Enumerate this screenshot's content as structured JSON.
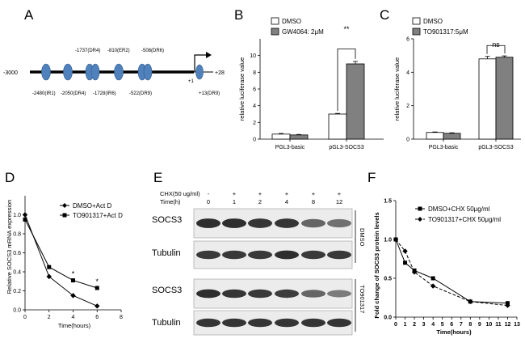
{
  "panels": {
    "A": {
      "label": "A",
      "start_label": "-3000",
      "end_label": "+28",
      "tss_label": "+1",
      "sites_top": [
        "-1737(DR4)",
        "-810(ER2)",
        "-508(DR6)"
      ],
      "sites_bottom": [
        "-2480(IR1)",
        "-2050(DR4)",
        "-1728(IR6)",
        "-522(DR9)",
        "+13(DR9)"
      ]
    },
    "B": {
      "label": "B"
    },
    "C": {
      "label": "C"
    },
    "D": {
      "label": "D"
    },
    "E": {
      "label": "E",
      "chx_label": "CHX(50 ug/ml)",
      "time_label": "Time(h)",
      "chx_marks": [
        "-",
        "+",
        "+",
        "+",
        "+",
        "+"
      ],
      "times": [
        "0",
        "1",
        "2",
        "4",
        "8",
        "12"
      ],
      "rows": [
        "SOCS3",
        "Tubulin",
        "SOCS3",
        "Tubulin"
      ],
      "groups": [
        "DMSO",
        "TO901317"
      ],
      "band_intensity": {
        "socs3_dmso": [
          0.95,
          0.95,
          0.92,
          0.92,
          0.7,
          0.65
        ],
        "tubulin_dmso": [
          0.9,
          0.9,
          0.9,
          0.95,
          0.9,
          0.9
        ],
        "socs3_to": [
          0.95,
          0.92,
          0.9,
          0.88,
          0.7,
          0.6
        ],
        "tubulin_to": [
          0.92,
          0.92,
          0.92,
          0.92,
          0.92,
          0.92
        ]
      }
    },
    "F": {
      "label": "F"
    }
  },
  "chart_data": [
    {
      "panel": "B",
      "type": "bar",
      "categories": [
        "PGL3-basic",
        "pGL3-SOCS3"
      ],
      "series": [
        {
          "name": "DMSO",
          "values": [
            0.6,
            3.0
          ],
          "errors": [
            0.08,
            0.08
          ],
          "color": "#ffffff"
        },
        {
          "name": "GW4064: 2μM",
          "values": [
            0.5,
            9.0
          ],
          "errors": [
            0.06,
            0.3
          ],
          "color": "#808080"
        }
      ],
      "ylabel": "relative luciferase value",
      "ylim": [
        0,
        12
      ],
      "yticks": [
        0,
        2,
        4,
        6,
        8,
        10
      ],
      "annotation": "**",
      "legend": "top-left"
    },
    {
      "panel": "C",
      "type": "bar",
      "categories": [
        "PGL3-basic",
        "pGL3-SOCS3"
      ],
      "series": [
        {
          "name": "DMSO",
          "values": [
            0.4,
            4.8
          ],
          "errors": [
            0.03,
            0.15
          ],
          "color": "#ffffff"
        },
        {
          "name": "TO901317:5μM",
          "values": [
            0.35,
            4.9
          ],
          "errors": [
            0.03,
            0.08
          ],
          "color": "#808080"
        }
      ],
      "ylabel": "relative luciferase value",
      "ylim": [
        0,
        6
      ],
      "yticks": [
        0,
        2,
        4,
        6
      ],
      "annotation": "ns",
      "legend": "top-left"
    },
    {
      "panel": "D",
      "type": "line",
      "x": [
        0,
        2,
        4,
        6
      ],
      "series": [
        {
          "name": "DMSO+Act D",
          "marker": "diamond",
          "values": [
            1.0,
            0.35,
            0.15,
            0.04
          ]
        },
        {
          "name": "TO901317+Act D",
          "marker": "square",
          "values": [
            0.95,
            0.45,
            0.31,
            0.23
          ]
        }
      ],
      "xlabel": "Time(hours)",
      "ylabel": "Relative SOCS3 mRNA expression",
      "xlim": [
        0,
        8
      ],
      "ylim": [
        0,
        1.2
      ],
      "xticks": [
        0,
        2,
        4,
        6,
        8
      ],
      "yticks": [
        0.0,
        0.2,
        0.4,
        0.6,
        0.8,
        1.0
      ],
      "ytick_labels": [
        "0.0",
        "0.2",
        "0.4",
        "0.6",
        "0.8",
        "1.0"
      ],
      "annotations": [
        {
          "x": 4,
          "text": "*"
        },
        {
          "x": 6,
          "text": "*"
        }
      ],
      "legend": "top-right"
    },
    {
      "panel": "F",
      "type": "line",
      "x": [
        0,
        1,
        2,
        4,
        8,
        12
      ],
      "series": [
        {
          "name": "DMSO+CHX 50μg/ml",
          "marker": "square",
          "dash": false,
          "values": [
            1.0,
            0.7,
            0.6,
            0.5,
            0.2,
            0.18
          ]
        },
        {
          "name": "TO901317+CHX 50μg/ml",
          "marker": "diamond",
          "dash": true,
          "values": [
            1.0,
            0.85,
            0.58,
            0.4,
            0.2,
            0.15
          ]
        }
      ],
      "xlabel": "Time(hours)",
      "ylabel": "Fold change of SOCS3 protein levels",
      "xlim": [
        0,
        13
      ],
      "ylim": [
        0,
        1.5
      ],
      "xticks": [
        0,
        1,
        2,
        3,
        4,
        5,
        6,
        7,
        8,
        9,
        10,
        11,
        12,
        13
      ],
      "yticks": [
        0.0,
        0.5,
        1.0,
        1.5
      ],
      "ytick_labels": [
        "0.0",
        "0.5",
        "1.0",
        "1.5"
      ],
      "legend": "top-right"
    }
  ]
}
